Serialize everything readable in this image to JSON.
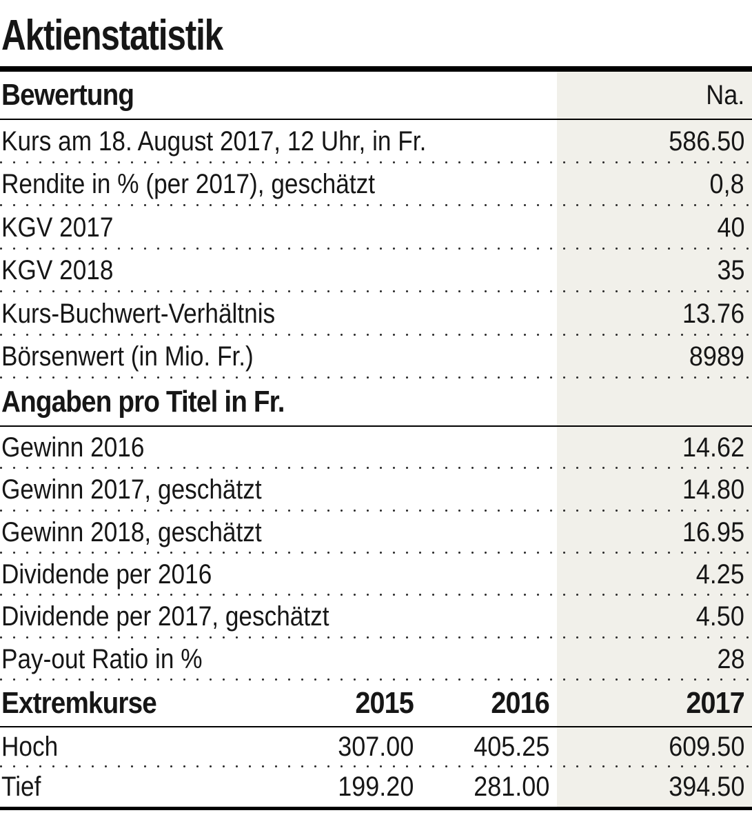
{
  "chart_data": {
    "type": "table",
    "title": "Aktienstatistik",
    "value_column_header": "Na.",
    "sections": [
      {
        "header": "Bewertung",
        "rows": [
          {
            "label": "Kurs am 18. August 2017, 12 Uhr, in Fr.",
            "value": "586.50"
          },
          {
            "label": "Rendite in % (per 2017), geschätzt",
            "value": "0,8"
          },
          {
            "label": "KGV 2017",
            "value": "40"
          },
          {
            "label": "KGV 2018",
            "value": "35"
          },
          {
            "label": "Kurs-Buchwert-Verhältnis",
            "value": "13.76"
          },
          {
            "label": "Börsenwert (in Mio. Fr.)",
            "value": "8989"
          }
        ]
      },
      {
        "header": "Angaben pro Titel in Fr.",
        "rows": [
          {
            "label": "Gewinn 2016",
            "value": "14.62"
          },
          {
            "label": "Gewinn 2017, geschätzt",
            "value": "14.80"
          },
          {
            "label": "Gewinn 2018, geschätzt",
            "value": "16.95"
          },
          {
            "label": "Dividende per 2016",
            "value": "4.25"
          },
          {
            "label": "Dividende per 2017, geschätzt",
            "value": "4.50"
          },
          {
            "label": "Pay-out Ratio in %",
            "value": "28"
          }
        ]
      },
      {
        "header": "Extremkurse",
        "year_columns": [
          "2015",
          "2016",
          "2017"
        ],
        "rows": [
          {
            "label": "Hoch",
            "values": [
              "307.00",
              "405.25",
              "609.50"
            ]
          },
          {
            "label": "Tief",
            "values": [
              "199.20",
              "281.00",
              "394.50"
            ]
          }
        ]
      }
    ],
    "layout": {
      "highlight_column": "2017",
      "highlight_color": "#f1f0ea",
      "rule_color": "#000000",
      "text_color": "#161616",
      "row_separator": "dotted",
      "grid": "horizontal-only",
      "value_alignment": "right"
    }
  }
}
